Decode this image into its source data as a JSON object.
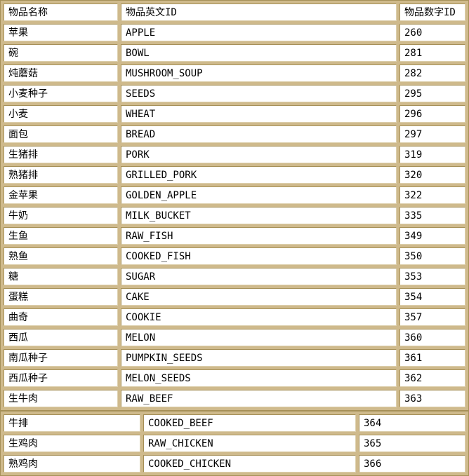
{
  "colors": {
    "border_fill": "#cfba8c",
    "border_line": "#a69058",
    "cell_bg": "#ffffff",
    "text": "#000000"
  },
  "table1": {
    "headers": [
      "物品名称",
      "物品英文ID",
      "物品数字ID"
    ],
    "rows": [
      [
        "苹果",
        "APPLE",
        "260"
      ],
      [
        "碗",
        "BOWL",
        "281"
      ],
      [
        "炖蘑菇",
        "MUSHROOM_SOUP",
        "282"
      ],
      [
        "小麦种子",
        "SEEDS",
        "295"
      ],
      [
        "小麦",
        "WHEAT",
        "296"
      ],
      [
        "面包",
        "BREAD",
        "297"
      ],
      [
        "生猪排",
        "PORK",
        "319"
      ],
      [
        "熟猪排",
        "GRILLED_PORK",
        "320"
      ],
      [
        "金苹果",
        "GOLDEN_APPLE",
        "322"
      ],
      [
        "牛奶",
        "MILK_BUCKET",
        "335"
      ],
      [
        "生鱼",
        "RAW_FISH",
        "349"
      ],
      [
        "熟鱼",
        "COOKED_FISH",
        "350"
      ],
      [
        "糖",
        "SUGAR",
        "353"
      ],
      [
        "蛋糕",
        "CAKE",
        "354"
      ],
      [
        "曲奇",
        "COOKIE",
        "357"
      ],
      [
        "西瓜",
        "MELON",
        "360"
      ],
      [
        "南瓜种子",
        "PUMPKIN_SEEDS",
        "361"
      ],
      [
        "西瓜种子",
        "MELON_SEEDS",
        "362"
      ],
      [
        "生牛肉",
        "RAW_BEEF",
        "363"
      ]
    ]
  },
  "table2": {
    "rows": [
      [
        "牛排",
        "COOKED_BEEF",
        "364"
      ],
      [
        "生鸡肉",
        "RAW_CHICKEN",
        "365"
      ],
      [
        "熟鸡肉",
        "COOKED_CHICKEN",
        "366"
      ]
    ]
  }
}
